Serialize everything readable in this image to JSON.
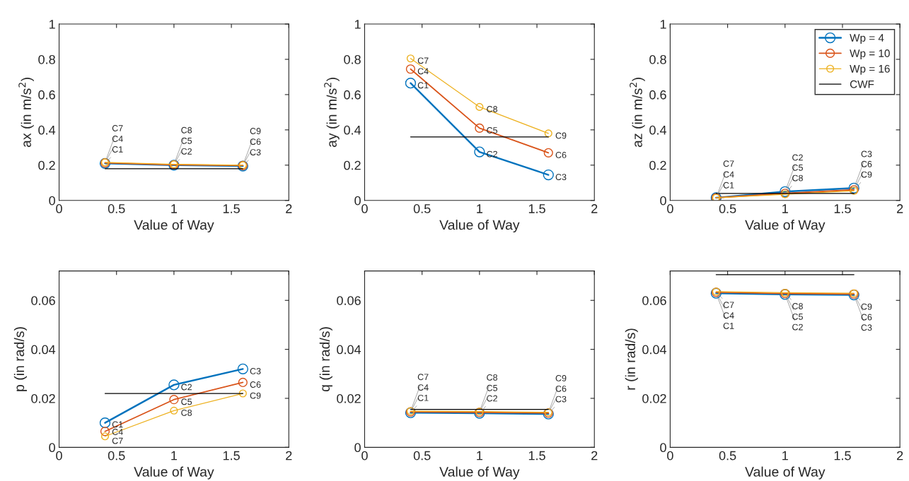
{
  "chart_data": [
    {
      "type": "line",
      "xlabel": "Value of Way",
      "ylabel": "ax (in m/s$^{2}$)",
      "xlim": [
        0,
        2
      ],
      "xticks": [
        0,
        0.5,
        1,
        1.5,
        2
      ],
      "ylim": [
        0,
        1
      ],
      "yticks": [
        0,
        0.2,
        0.4,
        0.6,
        0.8,
        1
      ],
      "marker": "circle",
      "grid": false,
      "legend": false,
      "x": [
        0.4,
        1,
        1.6
      ],
      "series": [
        {
          "color": "#0072bd",
          "values": [
            0.21,
            0.2,
            0.195
          ]
        },
        {
          "color": "#d95319",
          "values": [
            0.213,
            0.202,
            0.198
          ]
        },
        {
          "color": "#edb120",
          "values": [
            0.216,
            0.205,
            0.2
          ]
        },
        {
          "color": "#000000",
          "values": [
            0.18,
            0.18,
            0.18
          ],
          "marker": "none"
        }
      ],
      "annotations": [
        {
          "text": "C1",
          "x": 0.4,
          "y": 0.21
        },
        {
          "text": "C4",
          "x": 0.4,
          "y": 0.213
        },
        {
          "text": "C7",
          "x": 0.4,
          "y": 0.216
        },
        {
          "text": "C2",
          "x": 1,
          "y": 0.2
        },
        {
          "text": "C5",
          "x": 1,
          "y": 0.202
        },
        {
          "text": "C8",
          "x": 1,
          "y": 0.205
        },
        {
          "text": "C3",
          "x": 1.6,
          "y": 0.195
        },
        {
          "text": "C6",
          "x": 1.6,
          "y": 0.198
        },
        {
          "text": "C9",
          "x": 1.6,
          "y": 0.2
        }
      ]
    },
    {
      "type": "line",
      "xlabel": "Value of Way",
      "ylabel": "ay (in m/s$^{2}$)",
      "xlim": [
        0,
        2
      ],
      "xticks": [
        0,
        0.5,
        1,
        1.5,
        2
      ],
      "ylim": [
        0,
        1
      ],
      "yticks": [
        0,
        0.2,
        0.4,
        0.6,
        0.8,
        1
      ],
      "marker": "circle",
      "grid": false,
      "legend": false,
      "x": [
        0.4,
        1,
        1.6
      ],
      "series": [
        {
          "color": "#0072bd",
          "values": [
            0.665,
            0.275,
            0.145
          ]
        },
        {
          "color": "#d95319",
          "values": [
            0.745,
            0.41,
            0.27
          ]
        },
        {
          "color": "#edb120",
          "values": [
            0.805,
            0.53,
            0.38
          ]
        },
        {
          "color": "#000000",
          "values": [
            0.36,
            0.36,
            0.36
          ],
          "marker": "none"
        }
      ],
      "annotations": [
        {
          "text": "C1",
          "x": 0.4,
          "y": 0.665
        },
        {
          "text": "C4",
          "x": 0.4,
          "y": 0.745
        },
        {
          "text": "C7",
          "x": 0.4,
          "y": 0.805
        },
        {
          "text": "C2",
          "x": 1,
          "y": 0.275
        },
        {
          "text": "C5",
          "x": 1,
          "y": 0.41
        },
        {
          "text": "C8",
          "x": 1,
          "y": 0.53
        },
        {
          "text": "C3",
          "x": 1.6,
          "y": 0.145
        },
        {
          "text": "C6",
          "x": 1.6,
          "y": 0.27
        },
        {
          "text": "C9",
          "x": 1.6,
          "y": 0.38
        }
      ]
    },
    {
      "type": "line",
      "xlabel": "Value of Way",
      "ylabel": "az (in m/s$^{2}$)",
      "xlim": [
        0,
        2
      ],
      "xticks": [
        0,
        0.5,
        1,
        1.5,
        2
      ],
      "ylim": [
        0,
        1
      ],
      "yticks": [
        0,
        0.2,
        0.4,
        0.6,
        0.8,
        1
      ],
      "marker": "circle",
      "grid": false,
      "legend": "top right",
      "x": [
        0.4,
        1,
        1.6
      ],
      "series": [
        {
          "name": "Wp = 4",
          "color": "#0072bd",
          "values": [
            0.015,
            0.05,
            0.07
          ]
        },
        {
          "name": "Wp = 10",
          "color": "#d95319",
          "values": [
            0.015,
            0.04,
            0.06
          ]
        },
        {
          "name": "Wp = 16",
          "color": "#edb120",
          "values": [
            0.015,
            0.035,
            0.055
          ]
        },
        {
          "name": "CWF",
          "color": "#000000",
          "values": [
            0.04,
            0.04,
            0.04
          ],
          "marker": "none"
        }
      ],
      "annotations": [
        {
          "text": "C1",
          "x": 0.4,
          "y": 0.015
        },
        {
          "text": "C4",
          "x": 0.4,
          "y": 0.015
        },
        {
          "text": "C7",
          "x": 0.4,
          "y": 0.015
        },
        {
          "text": "C2",
          "x": 1,
          "y": 0.05
        },
        {
          "text": "C5",
          "x": 1,
          "y": 0.04
        },
        {
          "text": "C8",
          "x": 1,
          "y": 0.035
        },
        {
          "text": "C3",
          "x": 1.6,
          "y": 0.07
        },
        {
          "text": "C6",
          "x": 1.6,
          "y": 0.06
        },
        {
          "text": "C9",
          "x": 1.6,
          "y": 0.055
        }
      ]
    },
    {
      "type": "line",
      "xlabel": "Value of Way",
      "ylabel": "p (in rad/s)",
      "xlim": [
        0,
        2
      ],
      "xticks": [
        0,
        0.5,
        1,
        1.5,
        2
      ],
      "ylim": [
        0,
        0.072
      ],
      "yticks": [
        0,
        0.02,
        0.04,
        0.06
      ],
      "marker": "circle",
      "grid": false,
      "legend": false,
      "x": [
        0.4,
        1,
        1.6
      ],
      "series": [
        {
          "color": "#0072bd",
          "values": [
            0.01,
            0.0255,
            0.032
          ]
        },
        {
          "color": "#d95319",
          "values": [
            0.0065,
            0.0195,
            0.0265
          ]
        },
        {
          "color": "#edb120",
          "values": [
            0.0045,
            0.015,
            0.022
          ]
        },
        {
          "color": "#000000",
          "values": [
            0.022,
            0.022,
            0.022
          ],
          "marker": "none"
        }
      ],
      "annotations": [
        {
          "text": "C1",
          "x": 0.4,
          "y": 0.01
        },
        {
          "text": "C4",
          "x": 0.4,
          "y": 0.0065
        },
        {
          "text": "C7",
          "x": 0.4,
          "y": 0.0045
        },
        {
          "text": "C2",
          "x": 1,
          "y": 0.0255
        },
        {
          "text": "C5",
          "x": 1,
          "y": 0.0195
        },
        {
          "text": "C8",
          "x": 1,
          "y": 0.015
        },
        {
          "text": "C3",
          "x": 1.6,
          "y": 0.032
        },
        {
          "text": "C6",
          "x": 1.6,
          "y": 0.0265
        },
        {
          "text": "C9",
          "x": 1.6,
          "y": 0.022
        }
      ]
    },
    {
      "type": "line",
      "xlabel": "Value of Way",
      "ylabel": "q (in rad/s)",
      "xlim": [
        0,
        2
      ],
      "xticks": [
        0,
        0.5,
        1,
        1.5,
        2
      ],
      "ylim": [
        0,
        0.072
      ],
      "yticks": [
        0,
        0.02,
        0.04,
        0.06
      ],
      "marker": "circle",
      "grid": false,
      "legend": false,
      "x": [
        0.4,
        1,
        1.6
      ],
      "series": [
        {
          "color": "#0072bd",
          "values": [
            0.0141,
            0.0139,
            0.0136
          ]
        },
        {
          "color": "#d95319",
          "values": [
            0.0145,
            0.0143,
            0.014
          ]
        },
        {
          "color": "#edb120",
          "values": [
            0.0148,
            0.0146,
            0.0143
          ]
        },
        {
          "color": "#000000",
          "values": [
            0.0155,
            0.0155,
            0.0155
          ],
          "marker": "none"
        }
      ],
      "annotations": [
        {
          "text": "C1",
          "x": 0.4,
          "y": 0.0141
        },
        {
          "text": "C4",
          "x": 0.4,
          "y": 0.0145
        },
        {
          "text": "C7",
          "x": 0.4,
          "y": 0.0148
        },
        {
          "text": "C2",
          "x": 1,
          "y": 0.0139
        },
        {
          "text": "C5",
          "x": 1,
          "y": 0.0143
        },
        {
          "text": "C8",
          "x": 1,
          "y": 0.0146
        },
        {
          "text": "C3",
          "x": 1.6,
          "y": 0.0136
        },
        {
          "text": "C6",
          "x": 1.6,
          "y": 0.014
        },
        {
          "text": "C9",
          "x": 1.6,
          "y": 0.0143
        }
      ]
    },
    {
      "type": "line",
      "xlabel": "Value of Way",
      "ylabel": "r (in rad/s)",
      "xlim": [
        0,
        2
      ],
      "xticks": [
        0,
        0.5,
        1,
        1.5,
        2
      ],
      "ylim": [
        0,
        0.072
      ],
      "yticks": [
        0,
        0.02,
        0.04,
        0.06
      ],
      "marker": "circle",
      "grid": false,
      "legend": false,
      "x": [
        0.4,
        1,
        1.6
      ],
      "series": [
        {
          "color": "#0072bd",
          "values": [
            0.0629,
            0.0624,
            0.0622
          ]
        },
        {
          "color": "#d95319",
          "values": [
            0.0633,
            0.0628,
            0.0626
          ]
        },
        {
          "color": "#edb120",
          "values": [
            0.0636,
            0.0631,
            0.0629
          ]
        },
        {
          "color": "#000000",
          "values": [
            0.0705,
            0.0705,
            0.0705
          ],
          "marker": "none"
        }
      ],
      "annotations": [
        {
          "text": "C1",
          "x": 0.4,
          "y": 0.0629
        },
        {
          "text": "C4",
          "x": 0.4,
          "y": 0.0633
        },
        {
          "text": "C7",
          "x": 0.4,
          "y": 0.0636
        },
        {
          "text": "C2",
          "x": 1,
          "y": 0.0624
        },
        {
          "text": "C5",
          "x": 1,
          "y": 0.0628
        },
        {
          "text": "C8",
          "x": 1,
          "y": 0.0631
        },
        {
          "text": "C3",
          "x": 1.6,
          "y": 0.0622
        },
        {
          "text": "C6",
          "x": 1.6,
          "y": 0.0626
        },
        {
          "text": "C9",
          "x": 1.6,
          "y": 0.0629
        }
      ]
    }
  ]
}
